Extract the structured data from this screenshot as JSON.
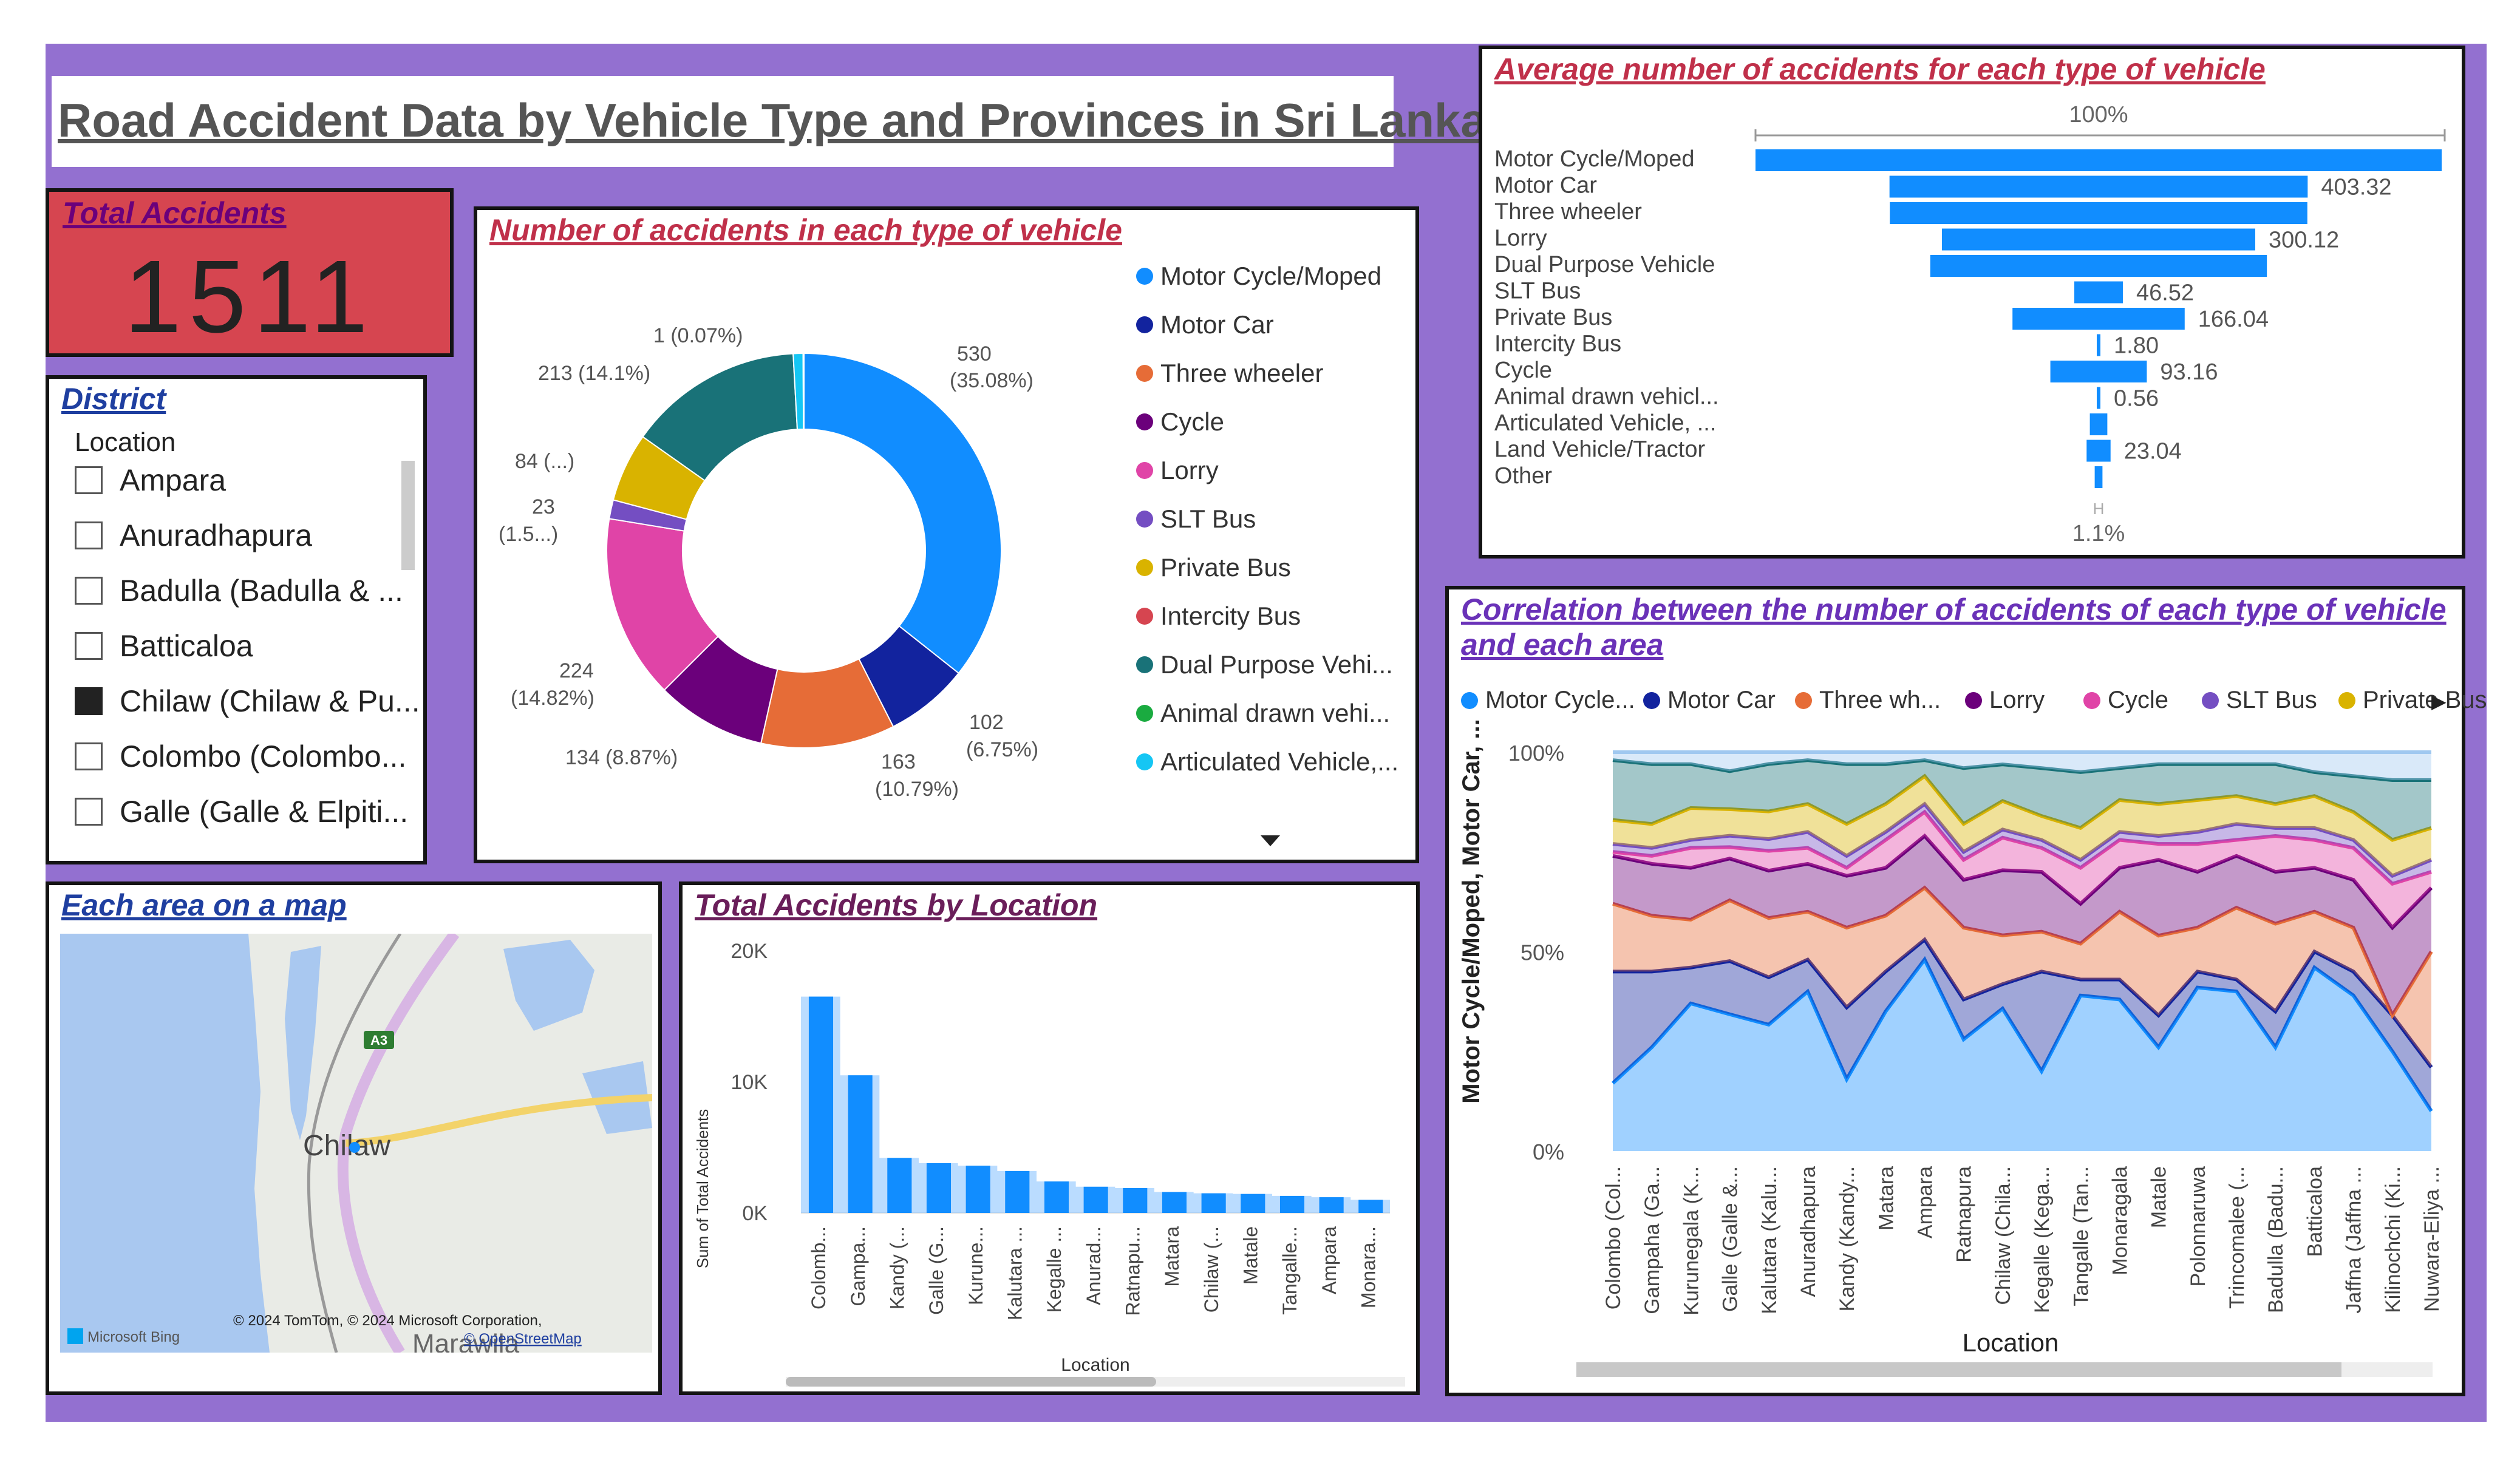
{
  "dashboard": {
    "title": "Road Accident Data by Vehicle Type and Provinces in Sri Lanka"
  },
  "kpi": {
    "label": "Total Accidents",
    "value": "1511"
  },
  "slicer": {
    "title": "District",
    "header": "Location",
    "items": [
      {
        "label": "Ampara",
        "checked": false
      },
      {
        "label": "Anuradhapura",
        "checked": false
      },
      {
        "label": "Badulla (Badulla & ...",
        "checked": false
      },
      {
        "label": "Batticaloa",
        "checked": false
      },
      {
        "label": "Chilaw (Chilaw & Pu...",
        "checked": true
      },
      {
        "label": "Colombo (Colombo...",
        "checked": false
      },
      {
        "label": "Galle (Galle & Elpiti...",
        "checked": false
      }
    ]
  },
  "donut": {
    "title": "Number of accidents in each type of vehicle",
    "labels": {
      "motor_cycle": "530",
      "motor_cycle_pct": "(35.08%)",
      "motor_car": "102",
      "motor_car_pct": "(6.75%)",
      "three_wheeler": "163",
      "three_wheeler_pct": "(10.79%)",
      "cycle": "134 (8.87%)",
      "lorry": "224",
      "lorry_pct": "(14.82%)",
      "slt_bus": "23",
      "slt_bus_pct": "(1.5...)",
      "private_bus": "84 (...)",
      "dual_purpose": "213 (14.1%)",
      "other_small": "1 (0.07%)"
    },
    "legend": [
      {
        "label": "Motor Cycle/Moped",
        "color": "#118dff"
      },
      {
        "label": "Motor Car",
        "color": "#12239e"
      },
      {
        "label": "Three wheeler",
        "color": "#e66c37"
      },
      {
        "label": "Cycle",
        "color": "#6b007b"
      },
      {
        "label": "Lorry",
        "color": "#e044a7"
      },
      {
        "label": "SLT Bus",
        "color": "#744ec2"
      },
      {
        "label": "Private Bus",
        "color": "#d9b300"
      },
      {
        "label": "Intercity Bus",
        "color": "#d64550"
      },
      {
        "label": "Dual Purpose Vehi...",
        "color": "#197278"
      },
      {
        "label": "Animal drawn vehi...",
        "color": "#1aab40"
      },
      {
        "label": "Articulated Vehicle,...",
        "color": "#15c6f4"
      }
    ],
    "more_icon": "caret-down-icon"
  },
  "funnel": {
    "title": "Average number of accidents for each type of vehicle",
    "top_label": "100%",
    "bottom_label": "1.1%",
    "marker": "H"
  },
  "map": {
    "title": "Each area on a map",
    "place_label": "Chilaw",
    "road_label": "A3",
    "bottom_place": "Marawila",
    "attribution": "© 2024 TomTom, © 2024 Microsoft Corporation,",
    "osm": "© OpenStreetMap",
    "provider": "Microsoft Bing"
  },
  "bar_chart": {
    "title": "Total Accidents by Location",
    "y_title": "Sum of Total Accidents",
    "x_title": "Location"
  },
  "area_chart": {
    "title_line1": "Correlation between the number of accidents of each type of vehicle",
    "title_line2": "and each area",
    "y_title": "Motor Cycle/Moped, Motor Car, ...",
    "x_title": "Location",
    "legend": [
      {
        "label": "Motor Cycle...",
        "color": "#118dff"
      },
      {
        "label": "Motor Car",
        "color": "#12239e"
      },
      {
        "label": "Three wh...",
        "color": "#e66c37"
      },
      {
        "label": "Lorry",
        "color": "#6b007b"
      },
      {
        "label": "Cycle",
        "color": "#e044a7"
      },
      {
        "label": "SLT Bus",
        "color": "#744ec2"
      },
      {
        "label": "Private Bus",
        "color": "#d9b300"
      }
    ],
    "legend_next": "▶"
  },
  "chart_data": [
    {
      "type": "pie",
      "title": "Number of accidents in each type of vehicle",
      "categories": [
        "Motor Cycle/Moped",
        "Motor Car",
        "Three wheeler",
        "Cycle",
        "Lorry",
        "SLT Bus",
        "Private Bus",
        "Dual Purpose Vehicle",
        "Intercity Bus",
        "Articulated Vehicle"
      ],
      "values": [
        530,
        102,
        163,
        134,
        224,
        23,
        84,
        213,
        1,
        12
      ],
      "colors": [
        "#118dff",
        "#12239e",
        "#e66c37",
        "#6b007b",
        "#e044a7",
        "#744ec2",
        "#d9b300",
        "#197278",
        "#d64550",
        "#15c6f4"
      ]
    },
    {
      "type": "bar",
      "title": "Average number of accidents for each type of vehicle",
      "orientation": "funnel",
      "categories": [
        "Motor Cycle/Moped",
        "Motor Car",
        "Three wheeler",
        "Lorry",
        "Dual Purpose Vehicle",
        "SLT Bus",
        "Private Bus",
        "Intercity Bus",
        "Cycle",
        "Animal drawn vehicl...",
        "Articulated Vehicle, ...",
        "Land Vehicle/Tractor",
        "Other"
      ],
      "values": [
        1060,
        646,
        645,
        484,
        520,
        75,
        266,
        3,
        149,
        1,
        27,
        37,
        12
      ],
      "data_labels": [
        "",
        "403.32",
        "",
        "300.12",
        "",
        "46.52",
        "166.04",
        "1.80",
        "93.16",
        "0.56",
        "",
        "23.04",
        ""
      ],
      "color": "#118dff"
    },
    {
      "type": "bar",
      "title": "Total Accidents by Location",
      "categories": [
        "Colomb...",
        "Gampa...",
        "Kandy (...",
        "Galle (G...",
        "Kurune...",
        "Kalutara ...",
        "Kegalle ...",
        "Anurad...",
        "Ratnapu...",
        "Matara",
        "Chilaw (...",
        "Matale",
        "Tangalle...",
        "Ampara",
        "Monara..."
      ],
      "values": [
        16500,
        10500,
        4200,
        3800,
        3600,
        3200,
        2400,
        2000,
        1900,
        1600,
        1500,
        1450,
        1300,
        1200,
        1000
      ],
      "yticks": [
        "0K",
        "10K",
        "20K"
      ],
      "ylim": [
        0,
        20000
      ],
      "xlabel": "Location",
      "ylabel": "Sum of Total Accidents",
      "color": "#118dff"
    },
    {
      "type": "area",
      "title": "Correlation between the number of accidents of each type of vehicle and each area",
      "stacked_percent": true,
      "categories": [
        "Colombo (Col...",
        "Gampaha (Ga...",
        "Kurunegala (K...",
        "Galle (Galle &...",
        "Kalutara (Kalu...",
        "Anuradhapura",
        "Kandy (Kandy...",
        "Matara",
        "Ampara",
        "Ratnapura",
        "Chilaw (Chila...",
        "Kegalle (Kega...",
        "Tangalle (Tan...",
        "Monaragala",
        "Matale",
        "Polonnaruwa",
        "Trincomalee (...",
        "Badulla (Badu...",
        "Batticaloa",
        "Jaffna (Jaffna ...",
        "Kilinochchi (Ki...",
        "Nuwara-Eliya ..."
      ],
      "yticks": [
        "0%",
        "50%",
        "100%"
      ],
      "xlabel": "Location",
      "ylabel": "Motor Cycle/Moped, Motor Car, ...",
      "series": [
        {
          "name": "Motor Cycle...",
          "color": "#118dff",
          "values": [
            0.17,
            0.26,
            0.37,
            0.36,
            0.32,
            0.4,
            0.18,
            0.35,
            0.48,
            0.28,
            0.35,
            0.2,
            0.39,
            0.38,
            0.26,
            0.41,
            0.4,
            0.26,
            0.46,
            0.39,
            0.25,
            0.1
          ]
        },
        {
          "name": "Motor Car",
          "color": "#12239e",
          "values": [
            0.28,
            0.19,
            0.09,
            0.14,
            0.12,
            0.08,
            0.18,
            0.1,
            0.05,
            0.1,
            0.06,
            0.25,
            0.04,
            0.05,
            0.08,
            0.04,
            0.03,
            0.09,
            0.04,
            0.06,
            0.09,
            0.11
          ]
        },
        {
          "name": "Three wh...",
          "color": "#e66c37",
          "values": [
            0.17,
            0.14,
            0.12,
            0.16,
            0.15,
            0.12,
            0.2,
            0.14,
            0.13,
            0.18,
            0.12,
            0.1,
            0.09,
            0.17,
            0.2,
            0.11,
            0.18,
            0.22,
            0.1,
            0.11,
            0.0,
            0.29
          ]
        },
        {
          "name": "Lorry",
          "color": "#6b007b",
          "values": [
            0.12,
            0.13,
            0.13,
            0.11,
            0.12,
            0.12,
            0.13,
            0.12,
            0.13,
            0.12,
            0.16,
            0.15,
            0.1,
            0.11,
            0.19,
            0.14,
            0.13,
            0.13,
            0.11,
            0.12,
            0.22,
            0.16
          ]
        },
        {
          "name": "Cycle",
          "color": "#e044a7",
          "values": [
            0.01,
            0.02,
            0.05,
            0.03,
            0.05,
            0.04,
            0.02,
            0.07,
            0.06,
            0.05,
            0.08,
            0.06,
            0.09,
            0.07,
            0.04,
            0.07,
            0.04,
            0.09,
            0.07,
            0.08,
            0.11,
            0.04
          ]
        },
        {
          "name": "SLT Bus",
          "color": "#744ec2",
          "values": [
            0.02,
            0.02,
            0.02,
            0.03,
            0.03,
            0.04,
            0.03,
            0.02,
            0.02,
            0.02,
            0.02,
            0.02,
            0.02,
            0.02,
            0.02,
            0.03,
            0.04,
            0.02,
            0.03,
            0.02,
            0.02,
            0.03
          ]
        },
        {
          "name": "Private Bus",
          "color": "#d9b300",
          "values": [
            0.06,
            0.06,
            0.08,
            0.07,
            0.07,
            0.07,
            0.08,
            0.07,
            0.07,
            0.07,
            0.07,
            0.06,
            0.08,
            0.08,
            0.08,
            0.08,
            0.07,
            0.06,
            0.08,
            0.07,
            0.09,
            0.08
          ]
        },
        {
          "name": "Dual Purpose",
          "color": "#197278",
          "values": [
            0.15,
            0.15,
            0.11,
            0.1,
            0.12,
            0.11,
            0.15,
            0.1,
            0.04,
            0.14,
            0.09,
            0.12,
            0.14,
            0.08,
            0.1,
            0.09,
            0.08,
            0.1,
            0.06,
            0.09,
            0.15,
            0.12
          ]
        },
        {
          "name": "Other",
          "color": "#a0c8f0",
          "values": [
            0.02,
            0.03,
            0.03,
            0.05,
            0.03,
            0.02,
            0.03,
            0.03,
            0.02,
            0.04,
            0.03,
            0.04,
            0.05,
            0.04,
            0.03,
            0.03,
            0.03,
            0.03,
            0.05,
            0.06,
            0.07,
            0.07
          ]
        }
      ]
    }
  ]
}
